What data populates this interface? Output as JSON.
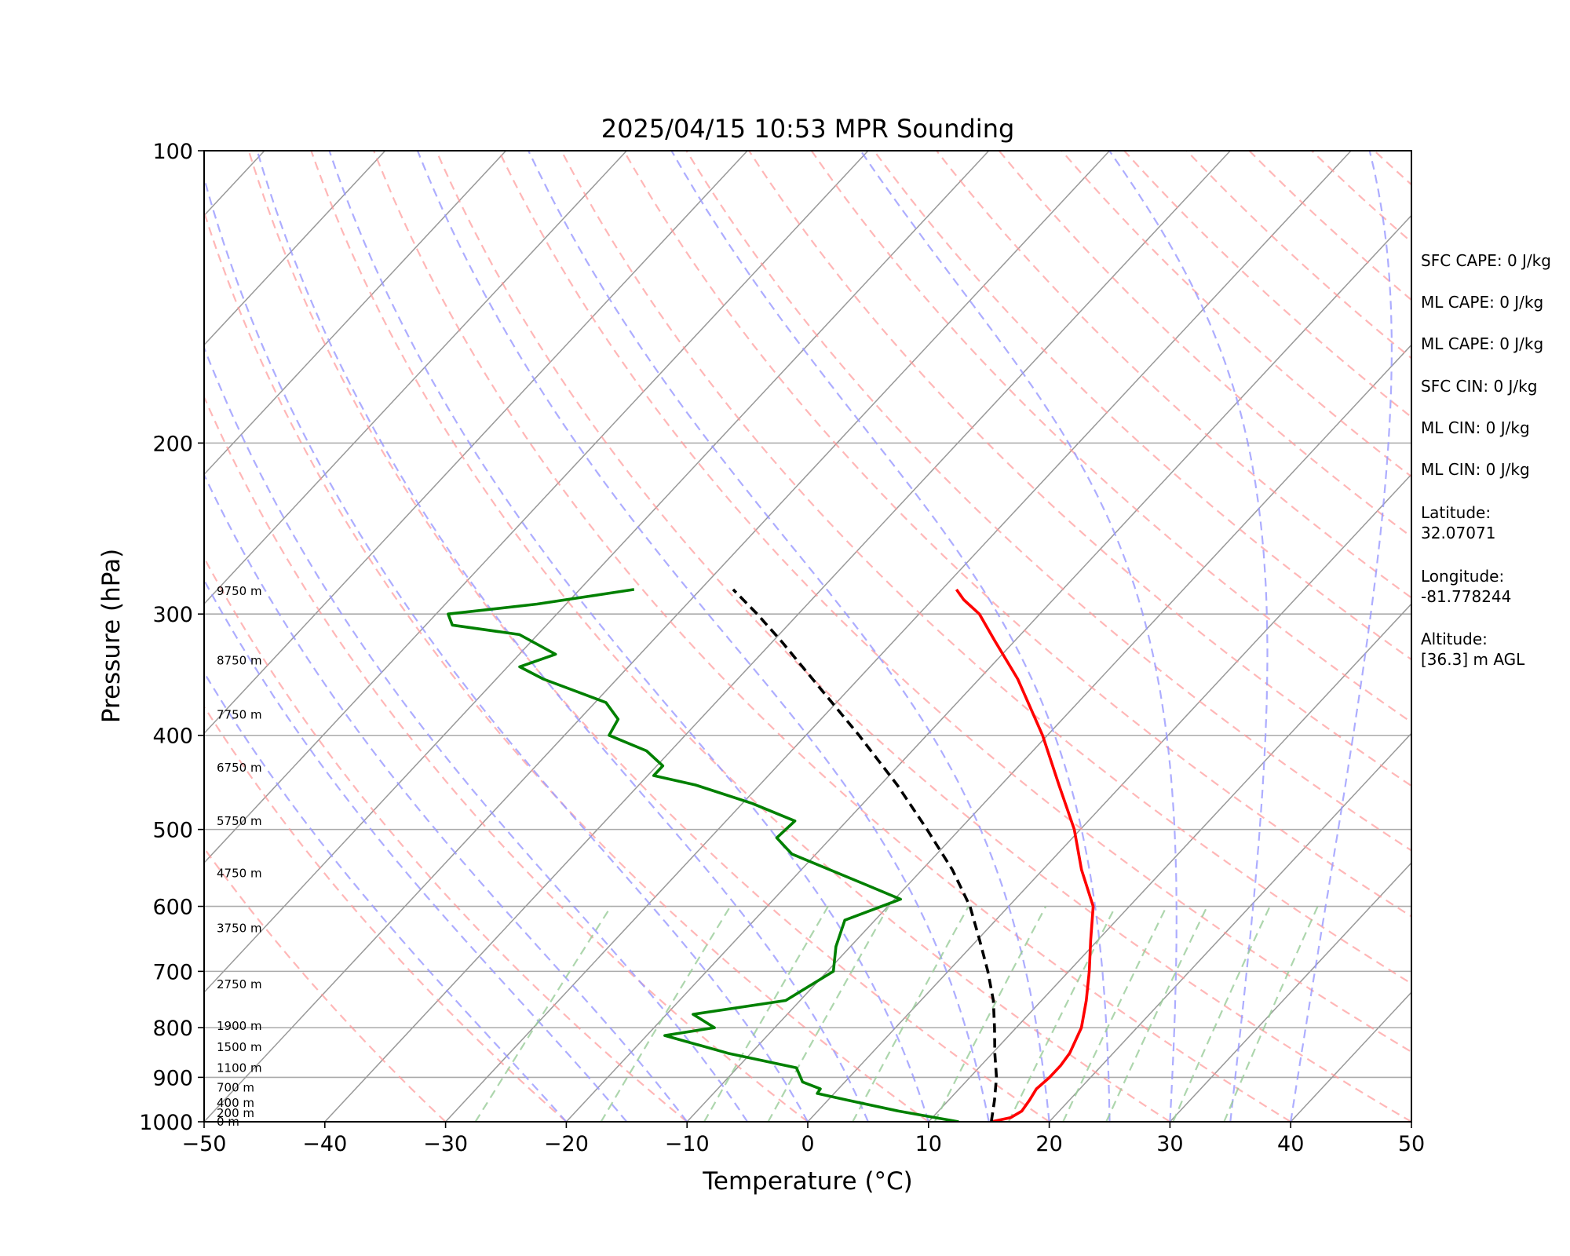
{
  "chart_data": {
    "type": "line",
    "title": "2025/04/15 10:53 MPR Sounding",
    "xlabel": "Temperature (°C)",
    "ylabel": "Pressure (hPa)",
    "xlim": [
      -50,
      50
    ],
    "ylim": [
      1000,
      100
    ],
    "y_scale": "log",
    "x_ticks": [
      "−50",
      "−40",
      "−30",
      "−20",
      "−10",
      "0",
      "10",
      "20",
      "30",
      "40",
      "50"
    ],
    "x_tick_values": [
      -50,
      -40,
      -30,
      -20,
      -10,
      0,
      10,
      20,
      30,
      40,
      50
    ],
    "y_ticks": [
      "1000",
      "900",
      "800",
      "700",
      "600",
      "500",
      "400",
      "300",
      "200",
      "100"
    ],
    "y_tick_values": [
      1000,
      900,
      800,
      700,
      600,
      500,
      400,
      300,
      200,
      100
    ],
    "skew_deg_per_decade": 75,
    "series": [
      {
        "key": "temperature",
        "color": "#ff0000",
        "points": [
          [
            1000,
            15.2
          ],
          [
            990,
            16.5
          ],
          [
            975,
            16.9
          ],
          [
            950,
            16.7
          ],
          [
            925,
            16.4
          ],
          [
            900,
            16.6
          ],
          [
            875,
            16.6
          ],
          [
            850,
            16.4
          ],
          [
            800,
            15.4
          ],
          [
            750,
            13.7
          ],
          [
            700,
            11.7
          ],
          [
            650,
            9.4
          ],
          [
            600,
            7.0
          ],
          [
            550,
            3.2
          ],
          [
            500,
            -0.5
          ],
          [
            450,
            -5.2
          ],
          [
            400,
            -10.4
          ],
          [
            350,
            -16.8
          ],
          [
            320,
            -21.6
          ],
          [
            300,
            -25.0
          ],
          [
            290,
            -27.4
          ],
          [
            283,
            -28.8
          ]
        ]
      },
      {
        "key": "dewpoint",
        "color": "#008000",
        "points": [
          [
            1000,
            12.5
          ],
          [
            990,
            10.2
          ],
          [
            975,
            6.7
          ],
          [
            950,
            1.6
          ],
          [
            935,
            -1.4
          ],
          [
            925,
            -1.5
          ],
          [
            910,
            -3.5
          ],
          [
            880,
            -5.1
          ],
          [
            850,
            -11.9
          ],
          [
            815,
            -18.5
          ],
          [
            800,
            -15.0
          ],
          [
            775,
            -17.8
          ],
          [
            750,
            -11.2
          ],
          [
            700,
            -9.5
          ],
          [
            660,
            -11.2
          ],
          [
            620,
            -12.5
          ],
          [
            590,
            -9.5
          ],
          [
            570,
            -13.5
          ],
          [
            530,
            -22.0
          ],
          [
            510,
            -24.5
          ],
          [
            490,
            -24.3
          ],
          [
            470,
            -29.2
          ],
          [
            450,
            -35.3
          ],
          [
            440,
            -39.5
          ],
          [
            430,
            -39.5
          ],
          [
            415,
            -42.0
          ],
          [
            400,
            -46.3
          ],
          [
            385,
            -46.8
          ],
          [
            370,
            -49.1
          ],
          [
            350,
            -56.1
          ],
          [
            340,
            -59.0
          ],
          [
            330,
            -57.0
          ],
          [
            315,
            -61.5
          ],
          [
            308,
            -67.8
          ],
          [
            300,
            -69.0
          ],
          [
            293,
            -62.4
          ],
          [
            283,
            -55.5
          ]
        ]
      },
      {
        "key": "parcel",
        "color": "#000000",
        "points": [
          [
            1000,
            15.2
          ],
          [
            950,
            13.8
          ],
          [
            900,
            12.2
          ],
          [
            850,
            10.2
          ],
          [
            800,
            8.2
          ],
          [
            750,
            6.0
          ],
          [
            700,
            3.3
          ],
          [
            650,
            0.2
          ],
          [
            600,
            -3.2
          ],
          [
            550,
            -7.5
          ],
          [
            500,
            -12.7
          ],
          [
            450,
            -18.6
          ],
          [
            400,
            -25.6
          ],
          [
            350,
            -33.8
          ],
          [
            320,
            -39.3
          ],
          [
            300,
            -43.4
          ],
          [
            283,
            -47.3
          ]
        ]
      }
    ],
    "height_labels": [
      "0 m",
      "200 m",
      "400 m",
      "700 m",
      "1100 m",
      "1500 m",
      "1900 m",
      "2750 m",
      "3750 m",
      "4750 m",
      "5750 m",
      "6750 m",
      "7750 m",
      "8750 m",
      "9750 m"
    ],
    "height_label_pressures": [
      1000,
      980,
      956,
      922,
      880,
      838,
      797,
      722,
      632,
      555,
      490,
      432,
      381,
      335,
      284
    ],
    "grid": true,
    "reference_lines": {
      "dry_adiabats_color": "#ff9999",
      "moist_adiabats_color": "#9999ff",
      "mixing_ratio_color": "#99cc99",
      "isotherm_color": "#999999"
    },
    "annotations": [
      "SFC CAPE: 0 J/kg",
      "ML CAPE: 0 J/kg",
      "ML CAPE: 0 J/kg",
      "SFC CIN: 0 J/kg",
      "ML CIN: 0 J/kg",
      "ML CIN: 0 J/kg",
      "Latitude:",
      "32.07071",
      "Longitude:",
      "-81.778244",
      "Altitude:",
      "[36.3] m AGL"
    ]
  }
}
